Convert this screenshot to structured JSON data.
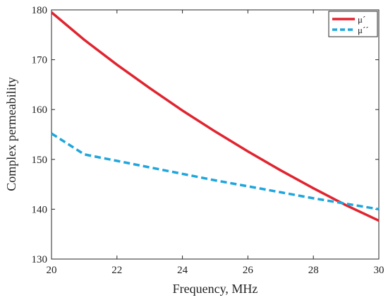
{
  "chart_data": {
    "type": "line",
    "title": "",
    "xlabel": "Frequency, MHz",
    "ylabel": "Complex permeability",
    "xlim": [
      20,
      30
    ],
    "ylim": [
      130,
      180
    ],
    "xticks": [
      "20",
      "22",
      "24",
      "26",
      "28",
      "30"
    ],
    "yticks": [
      "130",
      "140",
      "150",
      "160",
      "170",
      "180"
    ],
    "grid": false,
    "legend_position": "top-right",
    "series": [
      {
        "name": "μ´",
        "color": "#e0242f",
        "style": "solid",
        "x": [
          20,
          21,
          22,
          23,
          24,
          25,
          26,
          27,
          28,
          29,
          30
        ],
        "y": [
          179.5,
          174.0,
          169.0,
          164.3,
          159.8,
          155.6,
          151.6,
          147.8,
          144.2,
          140.8,
          137.7
        ]
      },
      {
        "name": "μ´´",
        "color": "#1fa6dc",
        "style": "dashed",
        "x": [
          20,
          21,
          22,
          23,
          24,
          25,
          26,
          27,
          28,
          29,
          30
        ],
        "y": [
          155.2,
          151.0,
          149.7,
          148.4,
          147.1,
          145.8,
          144.6,
          143.4,
          142.2,
          141.1,
          140.0
        ]
      }
    ]
  }
}
